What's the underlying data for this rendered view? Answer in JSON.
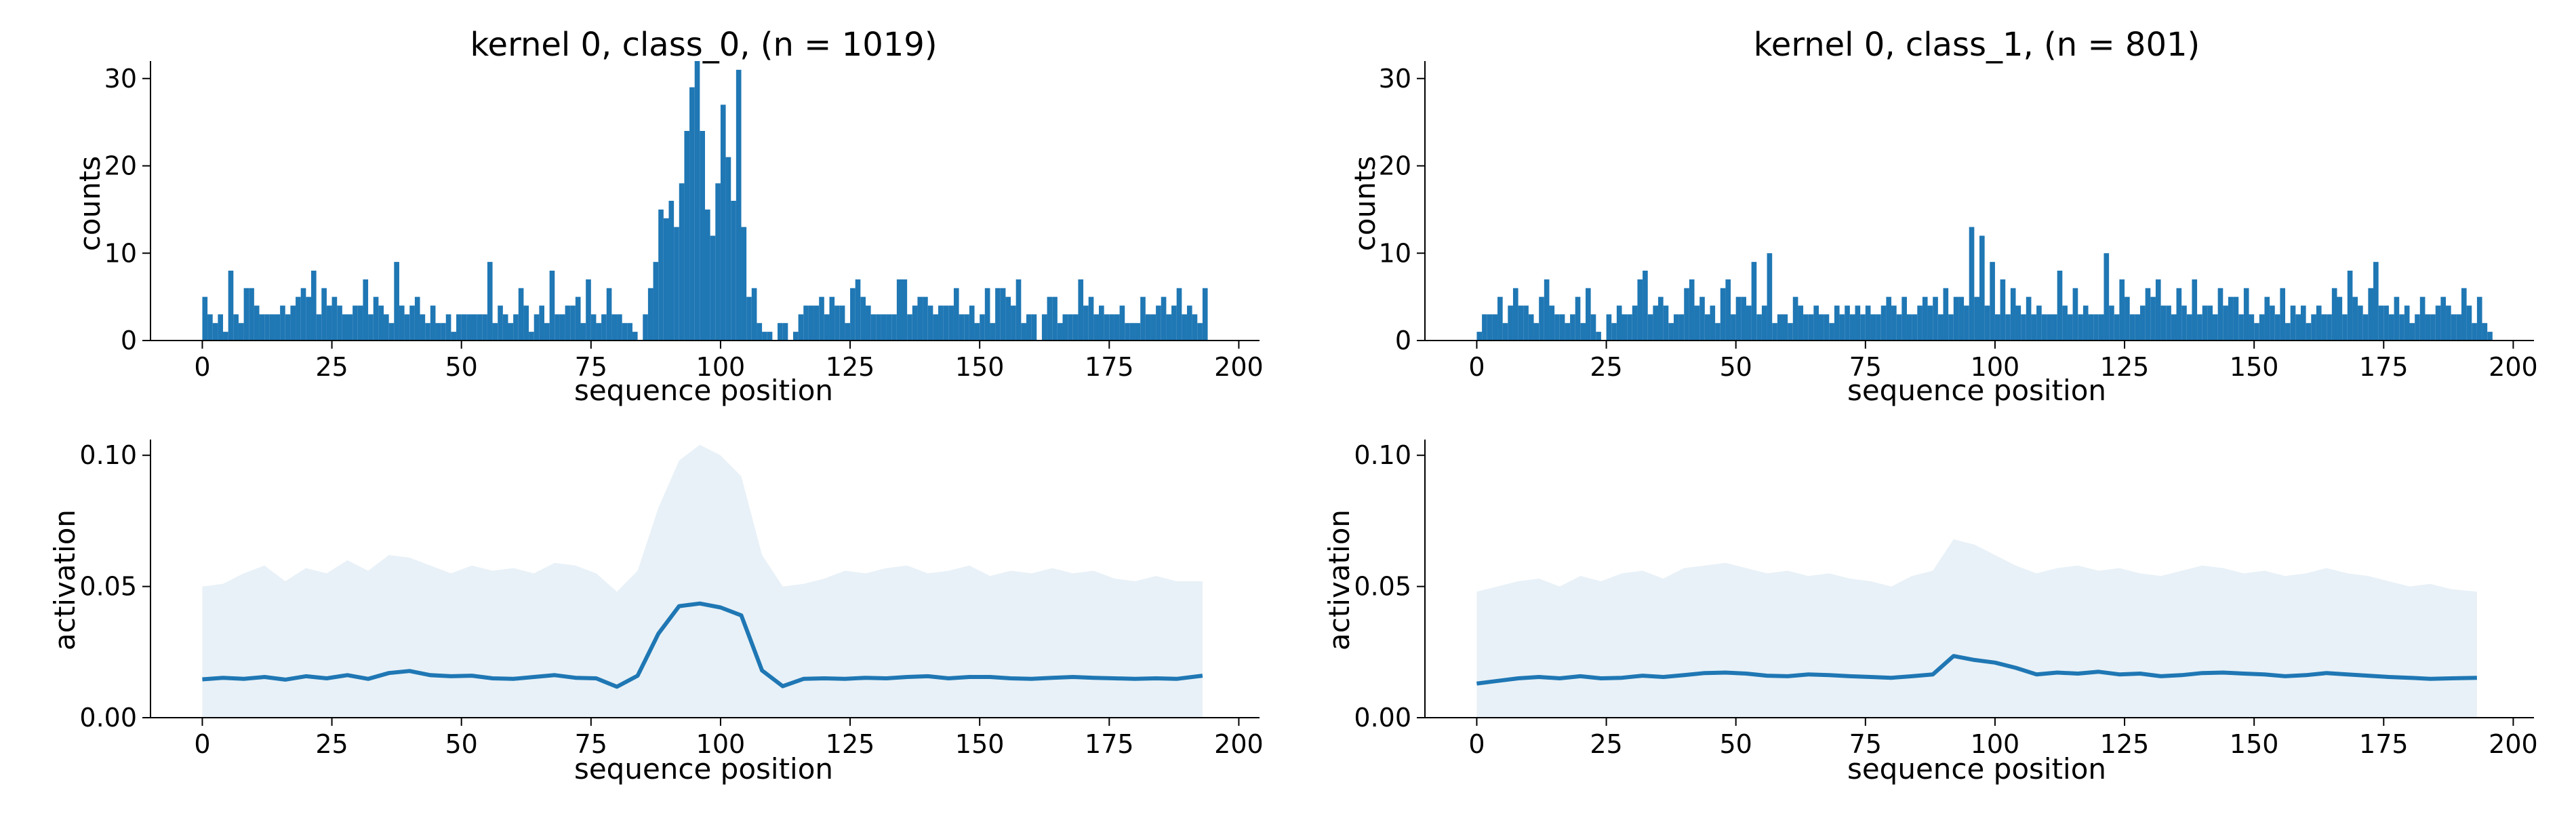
{
  "colors": {
    "series": "#1f77b4",
    "band_alpha": 0.1
  },
  "chart_data": [
    {
      "type": "bar",
      "title": "kernel 0, class_0, (n = 1019)",
      "xlabel": "sequence position",
      "ylabel": "counts",
      "xlim": [
        -10,
        204
      ],
      "ylim": [
        0,
        32
      ],
      "xticks": [
        0,
        25,
        50,
        75,
        100,
        125,
        150,
        175,
        200
      ],
      "yticks": [
        0,
        10,
        20,
        30
      ],
      "x_start": 0,
      "values": [
        5,
        3,
        2,
        3,
        1,
        8,
        3,
        2,
        6,
        6,
        4,
        3,
        3,
        3,
        3,
        4,
        3,
        4,
        5,
        6,
        5,
        8,
        3,
        6,
        4,
        5,
        4,
        3,
        3,
        4,
        4,
        7,
        3,
        5,
        4,
        3,
        2,
        9,
        4,
        3,
        4,
        5,
        3,
        2,
        4,
        2,
        2,
        3,
        1,
        3,
        3,
        3,
        3,
        3,
        3,
        9,
        2,
        4,
        3,
        2,
        3,
        6,
        4,
        1,
        3,
        4,
        2,
        8,
        3,
        3,
        4,
        4,
        5,
        2,
        7,
        3,
        2,
        3,
        6,
        3,
        3,
        2,
        2,
        1,
        0,
        3,
        6,
        9,
        15,
        14,
        16,
        13,
        18,
        24,
        29,
        32,
        24,
        15,
        12,
        18,
        27,
        21,
        16,
        31,
        13,
        5,
        6,
        2,
        1,
        1,
        0,
        2,
        2,
        0,
        1,
        3,
        4,
        4,
        4,
        5,
        3,
        5,
        4,
        4,
        2,
        6,
        7,
        5,
        4,
        3,
        3,
        3,
        3,
        3,
        7,
        7,
        3,
        4,
        5,
        5,
        4,
        3,
        4,
        4,
        4,
        6,
        3,
        3,
        4,
        2,
        3,
        6,
        2,
        6,
        6,
        5,
        4,
        7,
        2,
        3,
        3,
        0,
        3,
        5,
        5,
        2,
        3,
        3,
        3,
        7,
        4,
        5,
        3,
        4,
        3,
        3,
        3,
        4,
        2,
        2,
        2,
        5,
        3,
        3,
        4,
        5,
        3,
        4,
        6,
        3,
        4,
        3,
        2,
        6
      ]
    },
    {
      "type": "bar",
      "title": "kernel 0, class_1, (n = 801)",
      "xlabel": "sequence position",
      "ylabel": "counts",
      "xlim": [
        -10,
        204
      ],
      "ylim": [
        0,
        32
      ],
      "xticks": [
        0,
        25,
        50,
        75,
        100,
        125,
        150,
        175,
        200
      ],
      "yticks": [
        0,
        10,
        20,
        30
      ],
      "x_start": 0,
      "values": [
        1,
        3,
        3,
        3,
        5,
        2,
        4,
        6,
        4,
        4,
        3,
        2,
        5,
        7,
        4,
        3,
        3,
        2,
        3,
        5,
        2,
        6,
        3,
        1,
        0,
        3,
        2,
        4,
        3,
        3,
        4,
        7,
        8,
        3,
        4,
        5,
        4,
        2,
        3,
        3,
        6,
        7,
        4,
        5,
        3,
        4,
        2,
        6,
        7,
        3,
        5,
        5,
        4,
        9,
        3,
        4,
        10,
        2,
        3,
        3,
        2,
        5,
        4,
        3,
        3,
        4,
        3,
        3,
        2,
        4,
        3,
        4,
        3,
        4,
        3,
        4,
        3,
        3,
        4,
        5,
        4,
        3,
        5,
        3,
        3,
        4,
        5,
        4,
        5,
        3,
        6,
        3,
        5,
        5,
        4,
        13,
        5,
        12,
        4,
        9,
        3,
        7,
        3,
        6,
        4,
        3,
        5,
        3,
        4,
        3,
        3,
        3,
        8,
        4,
        3,
        6,
        3,
        4,
        3,
        3,
        3,
        10,
        4,
        3,
        7,
        5,
        3,
        3,
        4,
        6,
        5,
        7,
        4,
        4,
        3,
        6,
        4,
        3,
        7,
        3,
        4,
        4,
        3,
        6,
        4,
        5,
        5,
        3,
        6,
        3,
        2,
        3,
        5,
        4,
        3,
        6,
        2,
        4,
        3,
        4,
        2,
        3,
        4,
        3,
        3,
        6,
        5,
        3,
        8,
        5,
        4,
        3,
        6,
        9,
        4,
        4,
        3,
        5,
        3,
        4,
        2,
        3,
        5,
        3,
        3,
        4,
        5,
        4,
        3,
        3,
        6,
        4,
        2,
        5,
        2,
        1
      ]
    },
    {
      "type": "area",
      "xlabel": "sequence position",
      "ylabel": "activation",
      "xlim": [
        -10,
        204
      ],
      "ylim": [
        0,
        0.106
      ],
      "xticks": [
        0,
        25,
        50,
        75,
        100,
        125,
        150,
        175,
        200
      ],
      "yticks": [
        0.0,
        0.05,
        0.1
      ],
      "ytick_labels": [
        "0.00",
        "0.05",
        "0.10"
      ],
      "x": [
        0,
        4,
        8,
        12,
        16,
        20,
        24,
        28,
        32,
        36,
        40,
        44,
        48,
        52,
        56,
        60,
        64,
        68,
        72,
        76,
        80,
        84,
        88,
        92,
        96,
        100,
        104,
        108,
        112,
        116,
        120,
        124,
        128,
        132,
        136,
        140,
        144,
        148,
        152,
        156,
        160,
        164,
        168,
        172,
        176,
        180,
        184,
        188,
        193
      ],
      "mean": [
        0.0146,
        0.0152,
        0.0148,
        0.0155,
        0.0145,
        0.0158,
        0.015,
        0.0162,
        0.0148,
        0.017,
        0.0178,
        0.0162,
        0.0158,
        0.016,
        0.015,
        0.0148,
        0.0155,
        0.0162,
        0.0152,
        0.015,
        0.0118,
        0.016,
        0.032,
        0.0425,
        0.0435,
        0.042,
        0.039,
        0.018,
        0.012,
        0.0148,
        0.015,
        0.0148,
        0.0152,
        0.015,
        0.0155,
        0.0158,
        0.015,
        0.0155,
        0.0155,
        0.015,
        0.0148,
        0.0152,
        0.0155,
        0.0152,
        0.015,
        0.0148,
        0.015,
        0.0148,
        0.016
      ],
      "upper": [
        0.05,
        0.051,
        0.055,
        0.058,
        0.052,
        0.057,
        0.055,
        0.06,
        0.056,
        0.062,
        0.061,
        0.058,
        0.055,
        0.058,
        0.056,
        0.057,
        0.055,
        0.059,
        0.058,
        0.055,
        0.048,
        0.056,
        0.08,
        0.098,
        0.104,
        0.1,
        0.092,
        0.062,
        0.05,
        0.051,
        0.053,
        0.056,
        0.055,
        0.057,
        0.058,
        0.055,
        0.056,
        0.058,
        0.054,
        0.056,
        0.055,
        0.057,
        0.055,
        0.056,
        0.053,
        0.052,
        0.054,
        0.052,
        0.052
      ]
    },
    {
      "type": "area",
      "xlabel": "sequence position",
      "ylabel": "activation",
      "xlim": [
        -10,
        204
      ],
      "ylim": [
        0,
        0.106
      ],
      "xticks": [
        0,
        25,
        50,
        75,
        100,
        125,
        150,
        175,
        200
      ],
      "yticks": [
        0.0,
        0.05,
        0.1
      ],
      "ytick_labels": [
        "0.00",
        "0.05",
        "0.10"
      ],
      "x": [
        0,
        4,
        8,
        12,
        16,
        20,
        24,
        28,
        32,
        36,
        40,
        44,
        48,
        52,
        56,
        60,
        64,
        68,
        72,
        76,
        80,
        84,
        88,
        92,
        96,
        100,
        104,
        108,
        112,
        116,
        120,
        124,
        128,
        132,
        136,
        140,
        144,
        148,
        152,
        156,
        160,
        164,
        168,
        172,
        176,
        180,
        184,
        188,
        193
      ],
      "mean": [
        0.013,
        0.014,
        0.015,
        0.0155,
        0.015,
        0.0158,
        0.015,
        0.0152,
        0.016,
        0.0155,
        0.0162,
        0.017,
        0.0172,
        0.0168,
        0.016,
        0.0158,
        0.0165,
        0.0162,
        0.0158,
        0.0155,
        0.0152,
        0.0158,
        0.0165,
        0.0235,
        0.022,
        0.021,
        0.019,
        0.0165,
        0.0172,
        0.0168,
        0.0175,
        0.0165,
        0.0168,
        0.0158,
        0.0162,
        0.017,
        0.0172,
        0.0168,
        0.0165,
        0.0158,
        0.0162,
        0.017,
        0.0165,
        0.016,
        0.0155,
        0.0152,
        0.0148,
        0.015,
        0.0152
      ],
      "upper": [
        0.048,
        0.05,
        0.052,
        0.053,
        0.05,
        0.054,
        0.052,
        0.055,
        0.056,
        0.053,
        0.057,
        0.058,
        0.059,
        0.057,
        0.055,
        0.056,
        0.054,
        0.055,
        0.053,
        0.052,
        0.05,
        0.054,
        0.056,
        0.068,
        0.066,
        0.062,
        0.058,
        0.055,
        0.057,
        0.058,
        0.056,
        0.057,
        0.055,
        0.054,
        0.056,
        0.058,
        0.057,
        0.055,
        0.056,
        0.054,
        0.055,
        0.057,
        0.055,
        0.054,
        0.052,
        0.05,
        0.051,
        0.049,
        0.048
      ]
    }
  ]
}
